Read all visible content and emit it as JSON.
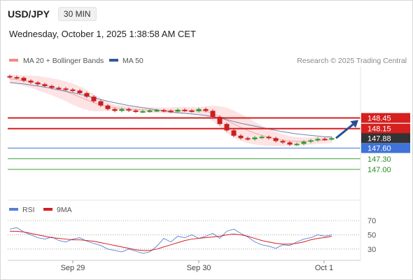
{
  "header": {
    "symbol": "USD/JPY",
    "timeframe": "30 MIN",
    "datetime": "Wednesday, October 1, 2025 1:38:58 AM CET"
  },
  "legend": {
    "main": [
      {
        "label": "MA 20 + Bollinger Bands",
        "color": "#f08a8a"
      },
      {
        "label": "MA 50",
        "color": "#2f5a9e"
      }
    ],
    "credit": "Research © 2025 Trading Central",
    "rsi": [
      {
        "label": "RSI",
        "color": "#5b7fd6"
      },
      {
        "label": "9MA",
        "color": "#d42020"
      }
    ]
  },
  "colors": {
    "resistance": "#d61f1f",
    "support": "#3f73d8",
    "target": "#3aa03a",
    "current": "#333333",
    "arrow": "#274e96",
    "candle_up": "#2e9b2e",
    "candle_down": "#c91f1f",
    "band_fill": "#fde3e3"
  },
  "chart_data": [
    {
      "type": "line",
      "title": "USD/JPY 30 MIN",
      "x_labels": [
        "Sep 29",
        "Sep 30",
        "Oct 1"
      ],
      "price_levels": [
        {
          "value": 148.45,
          "label": "148.45",
          "kind": "resistance"
        },
        {
          "value": 148.15,
          "label": "148.15",
          "kind": "resistance"
        },
        {
          "value": 147.88,
          "label": "147.88",
          "kind": "current"
        },
        {
          "value": 147.6,
          "label": "147.60",
          "kind": "support"
        },
        {
          "value": 147.3,
          "label": "147.30",
          "kind": "target"
        },
        {
          "value": 147.0,
          "label": "147.00",
          "kind": "target"
        }
      ],
      "series": [
        {
          "name": "Price",
          "values": [
            149.6,
            149.58,
            149.5,
            149.45,
            149.4,
            149.35,
            149.3,
            149.28,
            149.25,
            149.22,
            149.15,
            149.05,
            148.92,
            148.8,
            148.7,
            148.65,
            148.7,
            148.66,
            148.63,
            148.64,
            148.66,
            148.67,
            148.65,
            148.63,
            148.68,
            148.66,
            148.64,
            148.7,
            148.65,
            148.48,
            148.28,
            148.1,
            147.95,
            147.88,
            147.85,
            147.9,
            147.92,
            147.88,
            147.8,
            147.76,
            147.7,
            147.72,
            147.78,
            147.82,
            147.86,
            147.85,
            147.88
          ]
        },
        {
          "name": "MA 50",
          "values": [
            149.45,
            149.43,
            149.41,
            149.38,
            149.35,
            149.32,
            149.28,
            149.24,
            149.2,
            149.16,
            149.12,
            149.07,
            149.02,
            148.97,
            148.92,
            148.88,
            148.84,
            148.8,
            148.77,
            148.74,
            148.71,
            148.68,
            148.65,
            148.62,
            148.6,
            148.58,
            148.56,
            148.54,
            148.52,
            148.49,
            148.45,
            148.4,
            148.35,
            148.3,
            148.26,
            148.22,
            148.18,
            148.14,
            148.1,
            148.06,
            148.03,
            148.0,
            147.98,
            147.96,
            147.94,
            147.92,
            147.91
          ]
        },
        {
          "name": "MA 20",
          "values": [
            149.55,
            149.53,
            149.5,
            149.47,
            149.43,
            149.38,
            149.33,
            149.27,
            149.2,
            149.12,
            149.04,
            148.96,
            148.88,
            148.82,
            148.77,
            148.74,
            148.72,
            148.7,
            148.69,
            148.68,
            148.67,
            148.67,
            148.66,
            148.66,
            148.66,
            148.66,
            148.66,
            148.66,
            148.64,
            148.58,
            148.48,
            148.38,
            148.28,
            148.18,
            148.1,
            148.02,
            147.96,
            147.9,
            147.86,
            147.82,
            147.8,
            147.79,
            147.79,
            147.8,
            147.82,
            147.83,
            147.85
          ]
        }
      ],
      "band_width": [
        0.12,
        0.13,
        0.15,
        0.17,
        0.2,
        0.22,
        0.24,
        0.26,
        0.28,
        0.3,
        0.3,
        0.28,
        0.24,
        0.18,
        0.12,
        0.09,
        0.08,
        0.07,
        0.07,
        0.07,
        0.08,
        0.08,
        0.08,
        0.09,
        0.1,
        0.1,
        0.1,
        0.1,
        0.14,
        0.22,
        0.3,
        0.36,
        0.38,
        0.38,
        0.36,
        0.32,
        0.28,
        0.24,
        0.2,
        0.17,
        0.14,
        0.12,
        0.11,
        0.1,
        0.1,
        0.1,
        0.1
      ],
      "projection": {
        "from": 147.88,
        "to": 148.45
      }
    },
    {
      "type": "line",
      "title": "RSI",
      "ylim": [
        20,
        75
      ],
      "ticks": [
        70,
        50,
        30
      ],
      "series": [
        {
          "name": "RSI",
          "values": [
            58,
            60,
            54,
            50,
            46,
            44,
            47,
            42,
            40,
            44,
            46,
            41,
            38,
            35,
            30,
            28,
            26,
            30,
            27,
            24,
            26,
            34,
            45,
            40,
            48,
            46,
            50,
            45,
            48,
            52,
            45,
            55,
            58,
            52,
            47,
            40,
            36,
            34,
            31,
            36,
            35,
            40,
            44,
            46,
            50,
            48,
            50
          ]
        },
        {
          "name": "9MA",
          "values": [
            55,
            55,
            54,
            52,
            50,
            48,
            46,
            45,
            44,
            43,
            43,
            42,
            41,
            39,
            37,
            35,
            33,
            31,
            29,
            28,
            28,
            30,
            33,
            36,
            39,
            42,
            44,
            45,
            46,
            47,
            48,
            50,
            51,
            50,
            48,
            45,
            42,
            40,
            38,
            37,
            37,
            38,
            40,
            43,
            45,
            46,
            48
          ]
        }
      ]
    }
  ]
}
